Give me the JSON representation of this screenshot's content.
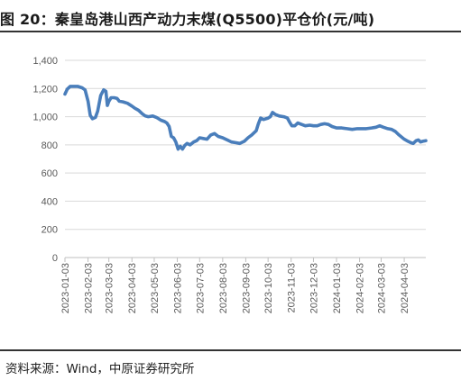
{
  "title": "图 20：秦皇岛港山西产动力末煤(Q5500)平仓价(元/吨)",
  "source": "资料来源：Wind，中原证券研究所",
  "chart_data": {
    "type": "line",
    "title": "图 20：秦皇岛港山西产动力末煤(Q5500)平仓价(元/吨)",
    "xlabel": "",
    "ylabel": "",
    "ylim": [
      0,
      1400
    ],
    "yticks": [
      0,
      200,
      400,
      600,
      800,
      1000,
      1200,
      1400
    ],
    "ytick_labels": [
      "0",
      "200",
      "400",
      "600",
      "800",
      "1,000",
      "1,200",
      "1,400"
    ],
    "xticks": [
      "2023-01-03",
      "2023-02-03",
      "2023-03-03",
      "2023-04-03",
      "2023-05-03",
      "2023-06-03",
      "2023-07-03",
      "2023-08-03",
      "2023-09-03",
      "2023-10-03",
      "2023-11-03",
      "2023-12-03",
      "2024-01-03",
      "2024-02-03",
      "2024-03-03",
      "2024-04-03"
    ],
    "grid": true,
    "legend": "none",
    "line_color": "#4a7ebb",
    "series": [
      {
        "name": "",
        "points": [
          [
            "2023-01-03",
            1160
          ],
          [
            "2023-01-06",
            1195
          ],
          [
            "2023-01-10",
            1215
          ],
          [
            "2023-01-20",
            1215
          ],
          [
            "2023-01-26",
            1205
          ],
          [
            "2023-01-30",
            1190
          ],
          [
            "2023-02-03",
            1110
          ],
          [
            "2023-02-06",
            1010
          ],
          [
            "2023-02-09",
            985
          ],
          [
            "2023-02-13",
            995
          ],
          [
            "2023-02-16",
            1040
          ],
          [
            "2023-02-20",
            1150
          ],
          [
            "2023-02-24",
            1190
          ],
          [
            "2023-02-27",
            1180
          ],
          [
            "2023-03-01",
            1080
          ],
          [
            "2023-03-03",
            1110
          ],
          [
            "2023-03-06",
            1135
          ],
          [
            "2023-03-10",
            1135
          ],
          [
            "2023-03-14",
            1130
          ],
          [
            "2023-03-17",
            1110
          ],
          [
            "2023-03-22",
            1105
          ],
          [
            "2023-03-28",
            1095
          ],
          [
            "2023-04-03",
            1075
          ],
          [
            "2023-04-07",
            1060
          ],
          [
            "2023-04-12",
            1045
          ],
          [
            "2023-04-17",
            1020
          ],
          [
            "2023-04-21",
            1005
          ],
          [
            "2023-04-25",
            1000
          ],
          [
            "2023-05-01",
            1005
          ],
          [
            "2023-05-06",
            995
          ],
          [
            "2023-05-12",
            975
          ],
          [
            "2023-05-17",
            965
          ],
          [
            "2023-05-20",
            955
          ],
          [
            "2023-05-23",
            930
          ],
          [
            "2023-05-26",
            860
          ],
          [
            "2023-05-29",
            850
          ],
          [
            "2023-06-01",
            820
          ],
          [
            "2023-06-04",
            770
          ],
          [
            "2023-06-07",
            790
          ],
          [
            "2023-06-10",
            770
          ],
          [
            "2023-06-13",
            795
          ],
          [
            "2023-06-16",
            810
          ],
          [
            "2023-06-20",
            800
          ],
          [
            "2023-06-25",
            820
          ],
          [
            "2023-06-29",
            830
          ],
          [
            "2023-07-03",
            850
          ],
          [
            "2023-07-08",
            845
          ],
          [
            "2023-07-13",
            840
          ],
          [
            "2023-07-18",
            870
          ],
          [
            "2023-07-23",
            880
          ],
          [
            "2023-07-28",
            860
          ],
          [
            "2023-08-03",
            850
          ],
          [
            "2023-08-09",
            835
          ],
          [
            "2023-08-15",
            820
          ],
          [
            "2023-08-21",
            815
          ],
          [
            "2023-08-26",
            810
          ],
          [
            "2023-09-01",
            825
          ],
          [
            "2023-09-06",
            850
          ],
          [
            "2023-09-11",
            870
          ],
          [
            "2023-09-17",
            900
          ],
          [
            "2023-09-20",
            950
          ],
          [
            "2023-09-23",
            990
          ],
          [
            "2023-09-27",
            980
          ],
          [
            "2023-10-03",
            990
          ],
          [
            "2023-10-06",
            1000
          ],
          [
            "2023-10-09",
            1030
          ],
          [
            "2023-10-13",
            1015
          ],
          [
            "2023-10-18",
            1005
          ],
          [
            "2023-10-24",
            1000
          ],
          [
            "2023-10-29",
            990
          ],
          [
            "2023-11-01",
            960
          ],
          [
            "2023-11-04",
            935
          ],
          [
            "2023-11-08",
            935
          ],
          [
            "2023-11-12",
            955
          ],
          [
            "2023-11-17",
            945
          ],
          [
            "2023-11-22",
            935
          ],
          [
            "2023-11-28",
            940
          ],
          [
            "2023-12-03",
            935
          ],
          [
            "2023-12-08",
            935
          ],
          [
            "2023-12-13",
            945
          ],
          [
            "2023-12-18",
            950
          ],
          [
            "2023-12-23",
            945
          ],
          [
            "2023-12-28",
            930
          ],
          [
            "2024-01-03",
            920
          ],
          [
            "2024-01-10",
            920
          ],
          [
            "2024-01-17",
            915
          ],
          [
            "2024-01-24",
            910
          ],
          [
            "2024-01-31",
            915
          ],
          [
            "2024-02-03",
            915
          ],
          [
            "2024-02-12",
            915
          ],
          [
            "2024-02-19",
            920
          ],
          [
            "2024-02-25",
            925
          ],
          [
            "2024-03-01",
            935
          ],
          [
            "2024-03-06",
            925
          ],
          [
            "2024-03-12",
            915
          ],
          [
            "2024-03-17",
            910
          ],
          [
            "2024-03-22",
            895
          ],
          [
            "2024-03-27",
            870
          ],
          [
            "2024-04-03",
            840
          ],
          [
            "2024-04-08",
            825
          ],
          [
            "2024-04-12",
            815
          ],
          [
            "2024-04-15",
            810
          ],
          [
            "2024-04-19",
            830
          ],
          [
            "2024-04-22",
            835
          ],
          [
            "2024-04-25",
            820
          ],
          [
            "2024-04-28",
            825
          ],
          [
            "2024-05-02",
            830
          ]
        ]
      }
    ]
  }
}
